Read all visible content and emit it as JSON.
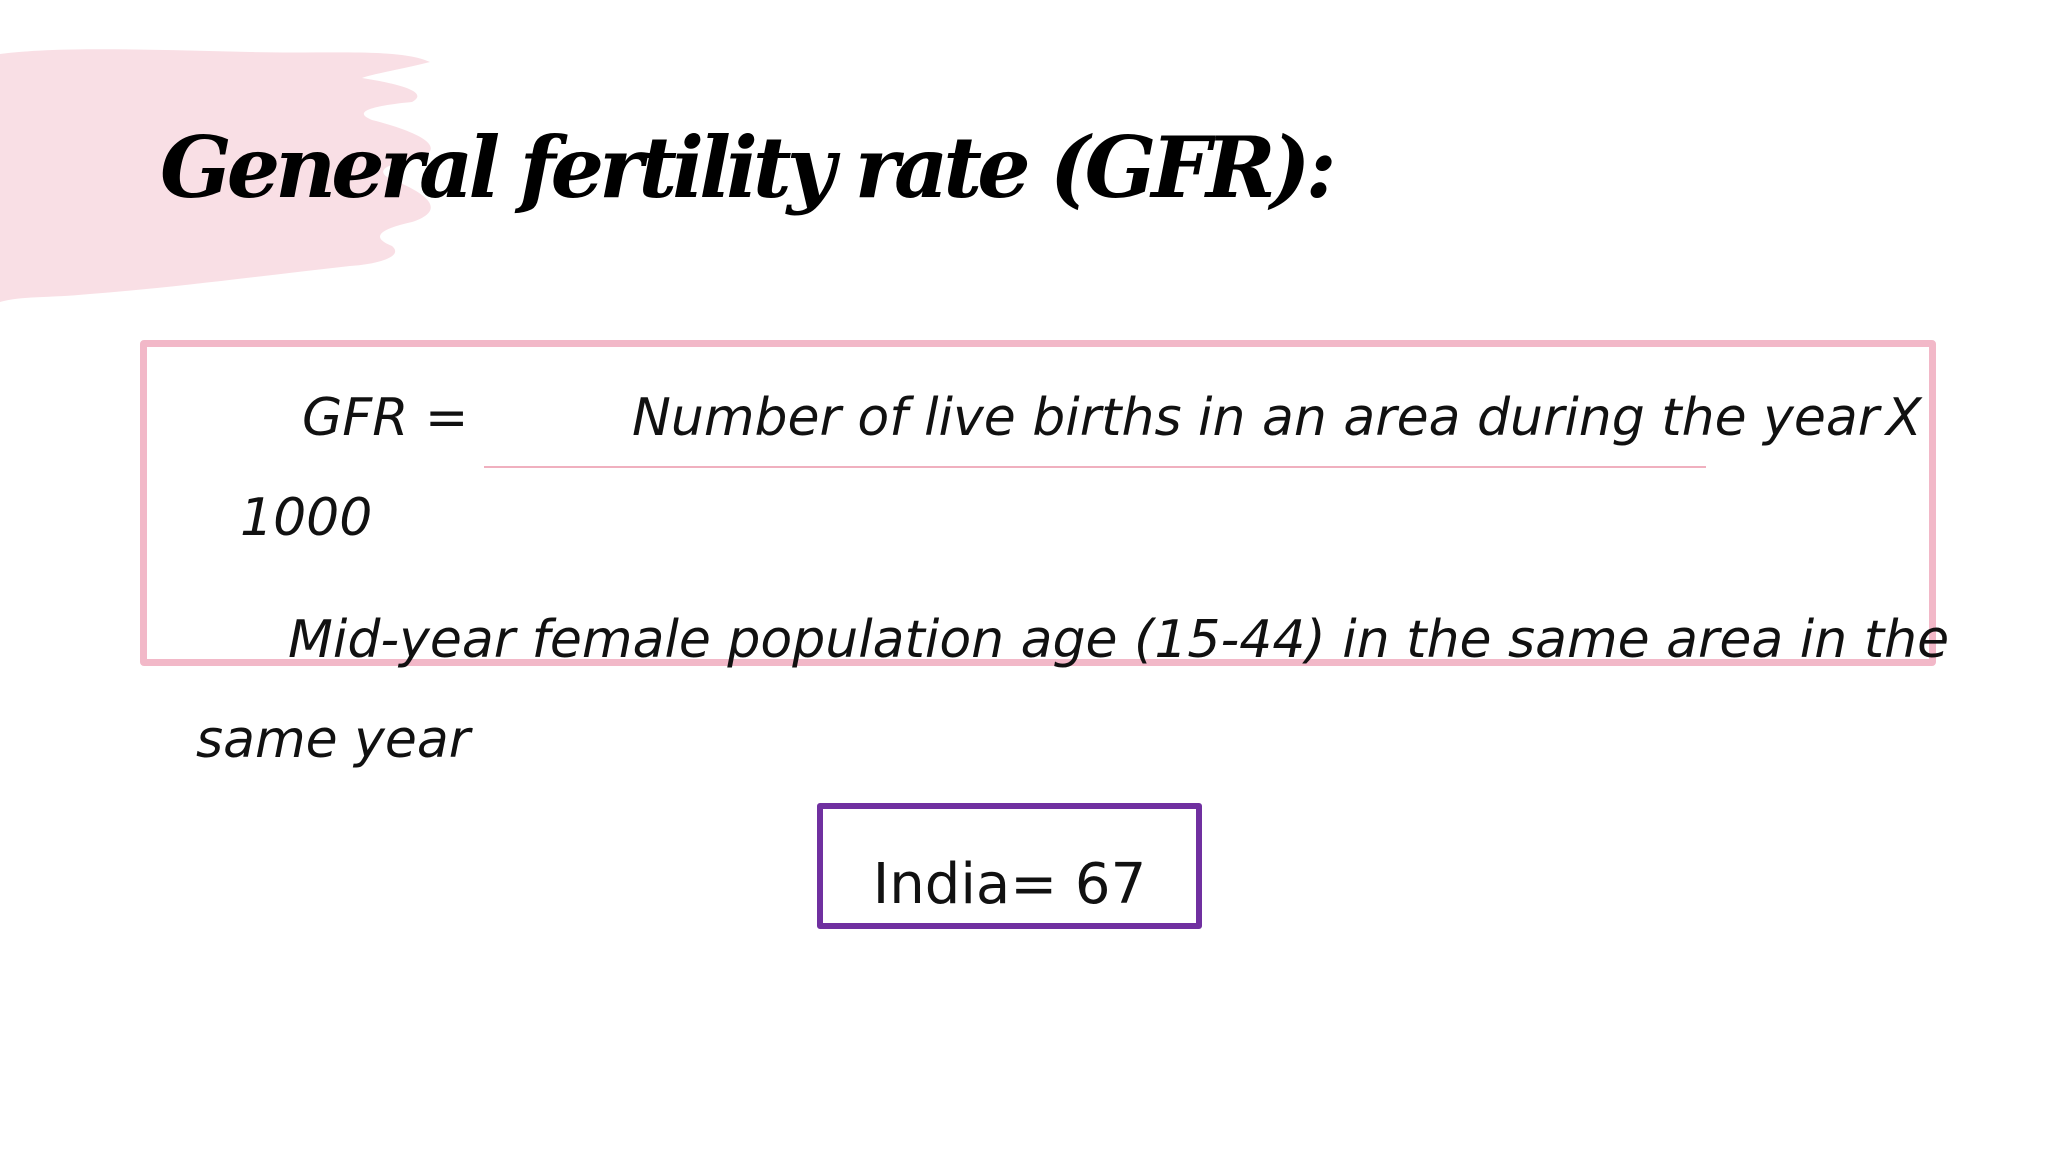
{
  "slide": {
    "title": "General fertility rate (GFR):",
    "formula": {
      "lhs": "GFR =",
      "numerator": "Number of live births in an area during the year",
      "multiplier_symbol": "X",
      "multiplier_value": "1000",
      "denominator_line1": "Mid-year female population age (15-44) in the same area in the",
      "denominator_line2": "same year"
    },
    "result": "India= 67"
  },
  "colors": {
    "background": "#ffffff",
    "brush_accent": "#f9dfe5",
    "formula_border": "#f2b8c8",
    "result_border": "#7030a0",
    "text": "#111111"
  }
}
